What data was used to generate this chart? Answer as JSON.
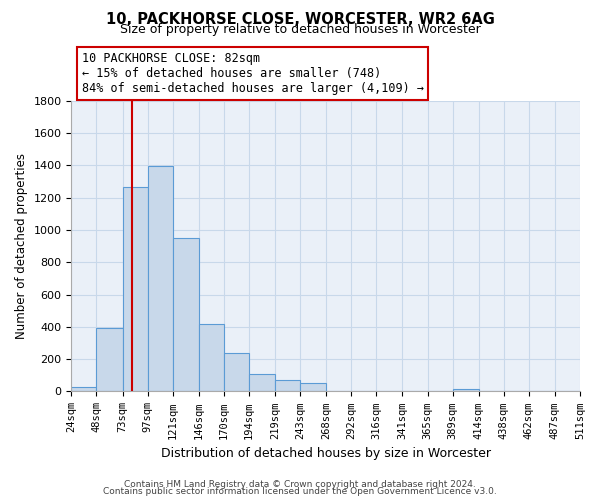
{
  "title": "10, PACKHORSE CLOSE, WORCESTER, WR2 6AG",
  "subtitle": "Size of property relative to detached houses in Worcester",
  "xlabel": "Distribution of detached houses by size in Worcester",
  "ylabel": "Number of detached properties",
  "bin_labels": [
    "24sqm",
    "48sqm",
    "73sqm",
    "97sqm",
    "121sqm",
    "146sqm",
    "170sqm",
    "194sqm",
    "219sqm",
    "243sqm",
    "268sqm",
    "292sqm",
    "316sqm",
    "341sqm",
    "365sqm",
    "389sqm",
    "414sqm",
    "438sqm",
    "462sqm",
    "487sqm",
    "511sqm"
  ],
  "bin_edges": [
    24,
    48,
    73,
    97,
    121,
    146,
    170,
    194,
    219,
    243,
    268,
    292,
    316,
    341,
    365,
    389,
    414,
    438,
    462,
    487,
    511
  ],
  "bar_heights": [
    25,
    390,
    1265,
    1395,
    950,
    415,
    235,
    110,
    70,
    50,
    0,
    0,
    0,
    0,
    0,
    15,
    0,
    0,
    0,
    0
  ],
  "bar_color": "#c8d8ea",
  "bar_edgecolor": "#5b9bd5",
  "vline_x": 82,
  "vline_color": "#cc0000",
  "annotation_line1": "10 PACKHORSE CLOSE: 82sqm",
  "annotation_line2": "← 15% of detached houses are smaller (748)",
  "annotation_line3": "84% of semi-detached houses are larger (4,109) →",
  "annotation_box_edgecolor": "#cc0000",
  "ylim": [
    0,
    1800
  ],
  "yticks": [
    0,
    200,
    400,
    600,
    800,
    1000,
    1200,
    1400,
    1600,
    1800
  ],
  "grid_color": "#c8d8ea",
  "footer_line1": "Contains HM Land Registry data © Crown copyright and database right 2024.",
  "footer_line2": "Contains public sector information licensed under the Open Government Licence v3.0.",
  "bg_color": "#eaf0f8"
}
